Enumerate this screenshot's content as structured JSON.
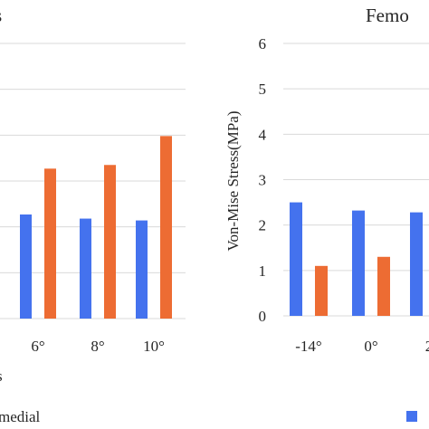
{
  "colors": {
    "series_a": "#4472ee",
    "series_b": "#ed6c33",
    "grid": "#d9d9d9",
    "text": "#262626"
  },
  "chart_data": [
    {
      "type": "bar",
      "title": "s",
      "xlabel": "s",
      "ylabel": "",
      "categories": [
        "6°",
        "8°",
        "10°"
      ],
      "ylim": [
        0,
        6
      ],
      "grid": true,
      "series": [
        {
          "name": "",
          "values": [
            2.27,
            2.18,
            2.14
          ]
        },
        {
          "name": "medial",
          "values": [
            3.27,
            3.35,
            3.98
          ]
        }
      ]
    },
    {
      "type": "bar",
      "title": "Femo",
      "xlabel": "",
      "ylabel": "Von-Mise Stress(MPa)",
      "categories": [
        "-14°",
        "0°",
        "2"
      ],
      "yticks": [
        "0",
        "1",
        "2",
        "3",
        "4",
        "5",
        "6"
      ],
      "ylim": [
        0,
        6
      ],
      "grid": true,
      "series": [
        {
          "name": "",
          "values": [
            2.5,
            2.32,
            2.28
          ]
        },
        {
          "name": "",
          "values": [
            1.1,
            1.3,
            null
          ]
        }
      ]
    }
  ]
}
